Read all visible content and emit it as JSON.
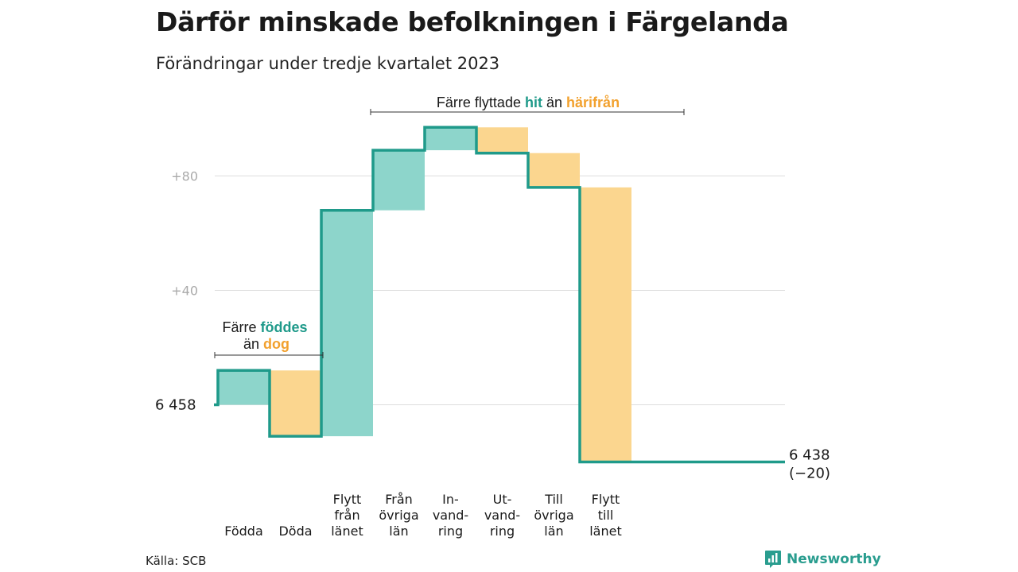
{
  "title": "Därför minskade befolkningen i Färgelanda",
  "subtitle": "Förändringar under tredje kvartalet 2023",
  "source": "Källa: SCB",
  "brand": "Newsworthy",
  "colors": {
    "teal_line": "#1f9a8a",
    "teal_fill": "#8dd5cb",
    "orange_fill": "#fbd68f",
    "teal_text": "#1f9a8a",
    "orange_text": "#f2a12e",
    "grid": "#dddddd",
    "axis_text": "#aaaaaa"
  },
  "annotations": {
    "top": {
      "prefix": "Färre flyttade",
      "hit": "hit",
      "mid": "än",
      "harifran": "härifrån"
    },
    "left": {
      "prefix": "Färre",
      "foddes": "föddes",
      "mid": "än",
      "dog": "dog"
    }
  },
  "chart_data": {
    "type": "waterfall",
    "title": "Därför minskade befolkningen i Färgelanda",
    "subtitle": "Förändringar under tredje kvartalet 2023",
    "start_label": "6  458",
    "end_label": [
      "6 438",
      "(−20)"
    ],
    "start_value": 6458,
    "end_value": 6438,
    "net_change": -20,
    "y_ticks": [
      {
        "value": 80,
        "label": "+80"
      },
      {
        "value": 40,
        "label": "+40"
      },
      {
        "value": 0,
        "label": ""
      }
    ],
    "ylim": [
      -20,
      100
    ],
    "grid": true,
    "steps": [
      {
        "category": [
          "Födda"
        ],
        "value": 12,
        "kind": "in"
      },
      {
        "category": [
          "Döda"
        ],
        "value": -23,
        "kind": "out"
      },
      {
        "category": [
          "Flytt",
          "från",
          "länet"
        ],
        "value": 79,
        "kind": "in"
      },
      {
        "category": [
          "Från",
          "övriga",
          "län"
        ],
        "value": 21,
        "kind": "in"
      },
      {
        "category": [
          "In-",
          "vand-",
          "ring"
        ],
        "value": 8,
        "kind": "in"
      },
      {
        "category": [
          "Ut-",
          "vand-",
          "ring"
        ],
        "value": -9,
        "kind": "out"
      },
      {
        "category": [
          "Till",
          "övriga",
          "län"
        ],
        "value": -12,
        "kind": "out"
      },
      {
        "category": [
          "Flytt",
          "till",
          "länet"
        ],
        "value": -96,
        "kind": "out"
      }
    ]
  }
}
